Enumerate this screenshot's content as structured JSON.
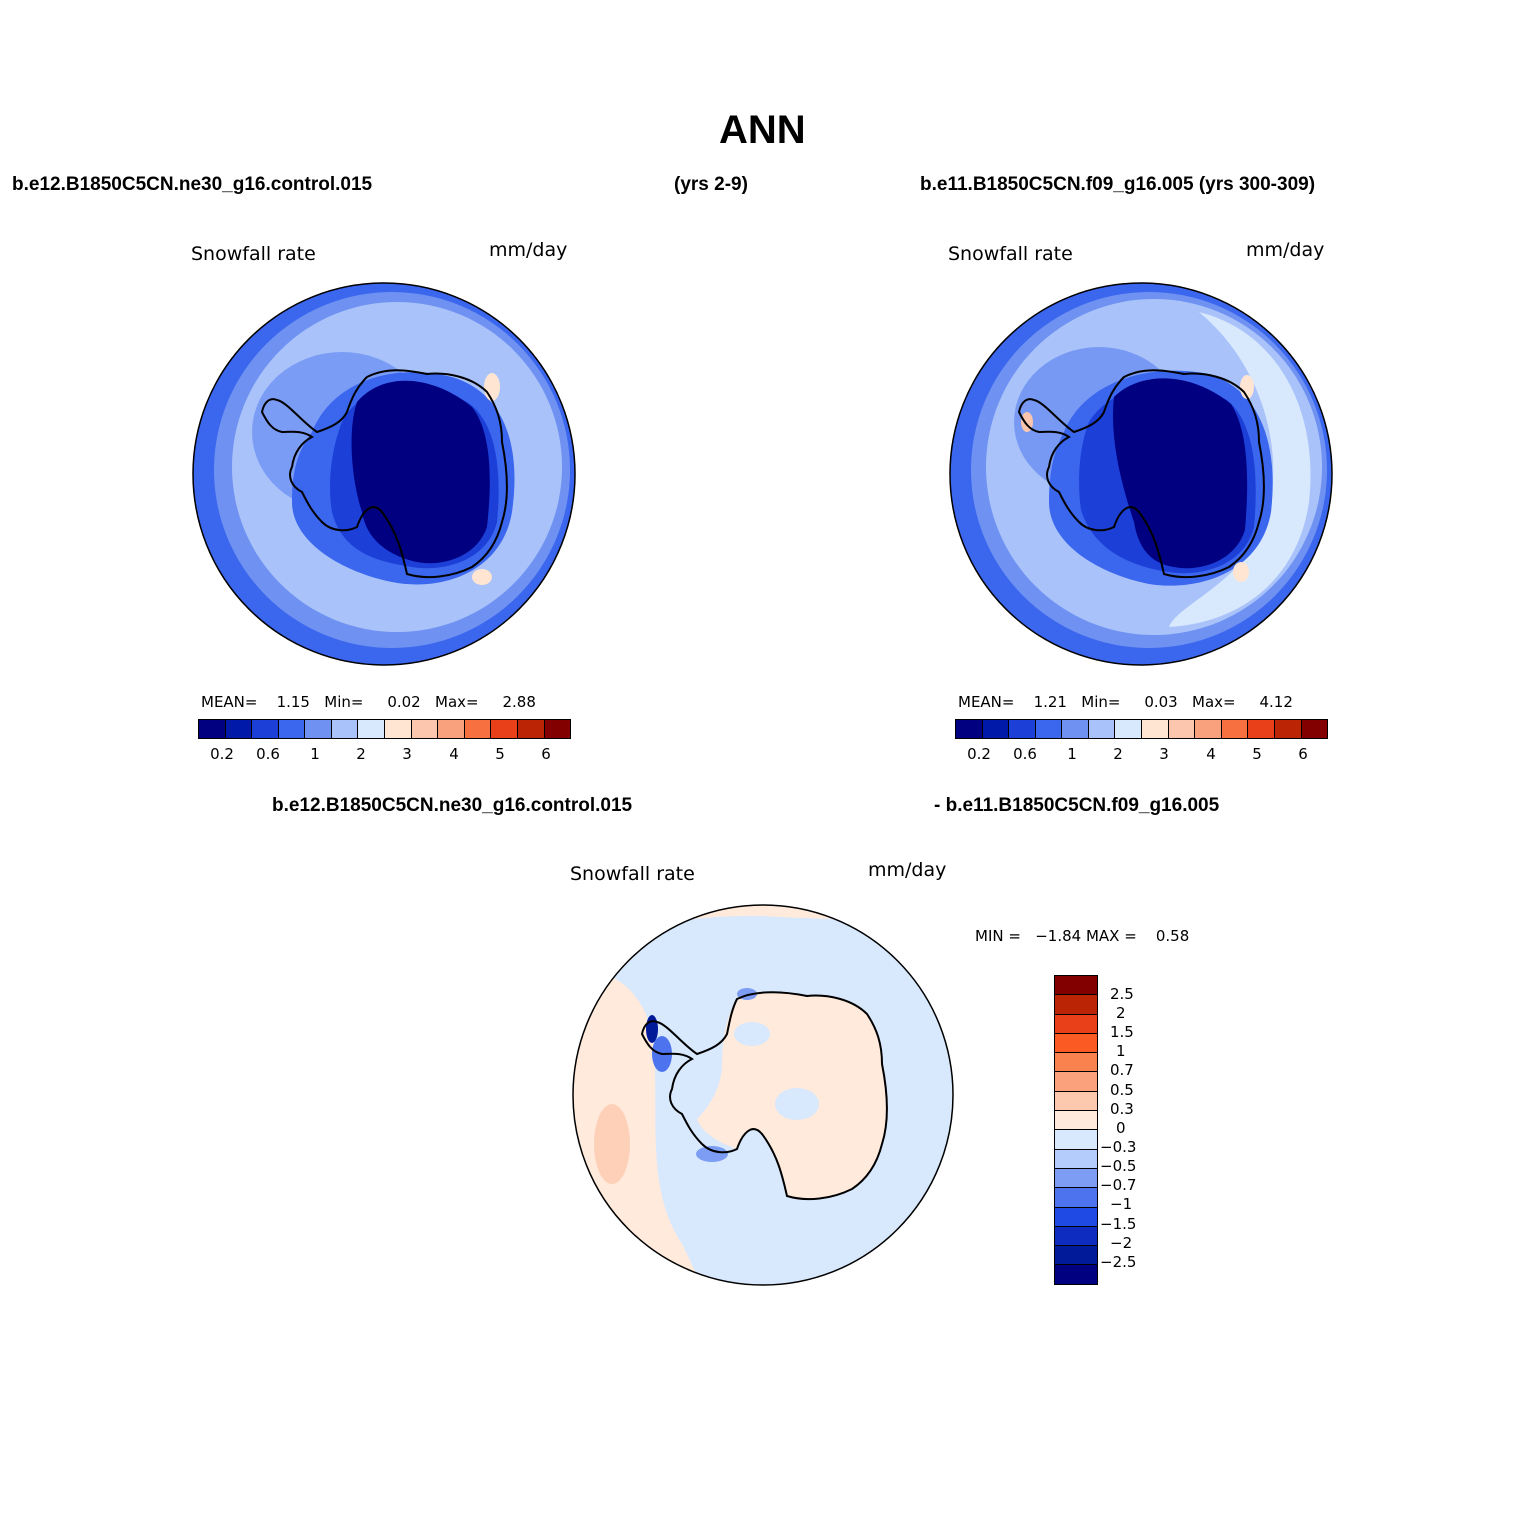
{
  "figure": {
    "title": "ANN",
    "top_left_case": "b.e12.B1850C5CN.ne30_g16.control.015",
    "top_left_years": "(yrs 2-9)",
    "top_right_case": "b.e11.B1850C5CN.f09_g16.005 (yrs 300-309)",
    "diff_case_a": "b.e12.B1850C5CN.ne30_g16.control.015",
    "diff_case_b": "- b.e11.B1850C5CN.f09_g16.005"
  },
  "panels": {
    "left": {
      "variable": "Snowfall rate",
      "units": "mm/day",
      "stats": {
        "mean_label": "MEAN=",
        "mean": "1.15",
        "min_label": "Min=",
        "min": "0.02",
        "max_label": "Max=",
        "max": "2.88"
      },
      "colorbar_ticks": [
        "0.2",
        "0.6",
        "1",
        "2",
        "3",
        "4",
        "5",
        "6"
      ]
    },
    "right": {
      "variable": "Snowfall rate",
      "units": "mm/day",
      "stats": {
        "mean_label": "MEAN=",
        "mean": "1.21",
        "min_label": "Min=",
        "min": "0.03",
        "max_label": "Max=",
        "max": "4.12"
      },
      "colorbar_ticks": [
        "0.2",
        "0.6",
        "1",
        "2",
        "3",
        "4",
        "5",
        "6"
      ]
    },
    "diff": {
      "variable": "Snowfall rate",
      "units": "mm/day",
      "minmax": "MIN =   −1.84 MAX =    0.58",
      "colorbar_ticks": [
        "2.5",
        "2",
        "1.5",
        "1",
        "0.7",
        "0.5",
        "0.3",
        "0",
        "−0.3",
        "−0.5",
        "−0.7",
        "−1",
        "−1.5",
        "−2",
        "−2.5"
      ]
    }
  },
  "colors": {
    "abs_scale": [
      "#000080",
      "#0019a8",
      "#1c3fd8",
      "#3b66ee",
      "#6f92f2",
      "#a9c3fa",
      "#d8e8fd",
      "#ffe5d2",
      "#fcc6ae",
      "#f9a07c",
      "#f7703f",
      "#e9401a",
      "#bb2405",
      "#820000"
    ],
    "diff_scale": [
      "#820000",
      "#bb2405",
      "#e9401a",
      "#fb5a22",
      "#f9824f",
      "#fba27d",
      "#fdc9ae",
      "#ffeadc",
      "#d8e8fd",
      "#b4ccfb",
      "#7c9df3",
      "#4d74ee",
      "#1f4be4",
      "#0f2cc0",
      "#001a99",
      "#000080"
    ]
  }
}
